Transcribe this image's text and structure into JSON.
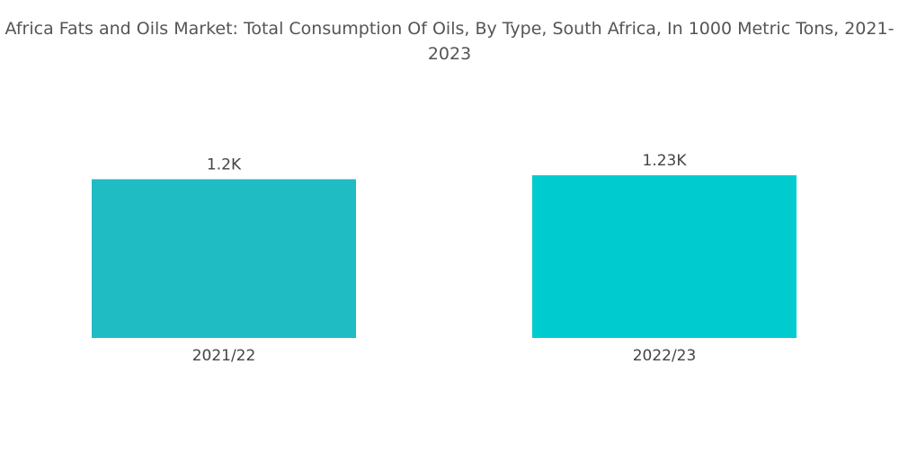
{
  "chart_data": {
    "type": "bar",
    "title": "Africa Fats and Oils Market: Total Consumption Of Oils, By Type, South Africa, In 1000 Metric Tons, 2021-2023",
    "categories": [
      "2021/22",
      "2022/23"
    ],
    "values": [
      1200,
      1230
    ],
    "value_labels": [
      "1.2K",
      "1.23K"
    ],
    "colors": [
      "#1fbcc4",
      "#00ccd0"
    ]
  }
}
